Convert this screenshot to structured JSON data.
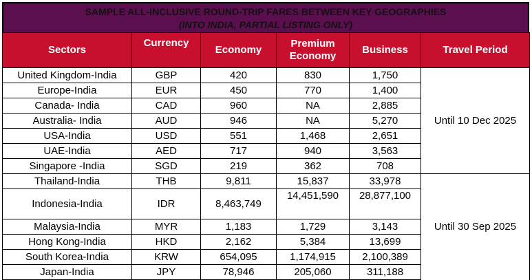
{
  "banner": {
    "title": "SAMPLE ALL-INCLUSIVE ROUND-TRIP FARES BETWEEN KEY GEOGRAPHIES",
    "subtitle": "(INTO INDIA, PARTIAL LISTING ONLY)"
  },
  "colors": {
    "banner": "#5b0f4f",
    "header": "#c8102e"
  },
  "headers": {
    "sectors": "Sectors",
    "currency": "Currency",
    "economy": "Economy",
    "premium_line1": "Premium",
    "premium_line2": "Economy",
    "business": "Business",
    "period": "Travel Period"
  },
  "periods": [
    "Until 10 Dec 2025",
    "Until 30 Sep 2025"
  ],
  "rows": [
    {
      "sector": "United Kingdom-India",
      "currency": "GBP",
      "economy": "420",
      "premium": "830",
      "business": "1,750"
    },
    {
      "sector": "Europe-India",
      "currency": "EUR",
      "economy": "450",
      "premium": "770",
      "business": "1,400"
    },
    {
      "sector": "Canada- India",
      "currency": "CAD",
      "economy": "960",
      "premium": "NA",
      "business": "2,885"
    },
    {
      "sector": "Australia- India",
      "currency": "AUD",
      "economy": "946",
      "premium": "NA",
      "business": "5,270"
    },
    {
      "sector": "USA-India",
      "currency": "USD",
      "economy": "551",
      "premium": "1,468",
      "business": "2,651"
    },
    {
      "sector": "UAE-India",
      "currency": "AED",
      "economy": "717",
      "premium": "940",
      "business": "3,563"
    },
    {
      "sector": "Singapore -India",
      "currency": "SGD",
      "economy": "219",
      "premium": "362",
      "business": "708"
    },
    {
      "sector": "Thailand-India",
      "currency": "THB",
      "economy": "9,811",
      "premium": "15,837",
      "business": "33,978"
    },
    {
      "sector": "Indonesia-India",
      "currency": "IDR",
      "economy": "8,463,749",
      "premium": "14,451,590",
      "business": "28,877,100"
    },
    {
      "sector": "Malaysia-India",
      "currency": "MYR",
      "economy": "1,183",
      "premium": "1,729",
      "business": "3,143"
    },
    {
      "sector": "Hong Kong-India",
      "currency": "HKD",
      "economy": "2,162",
      "premium": "5,384",
      "business": "13,699"
    },
    {
      "sector": "South Korea-India",
      "currency": "KRW",
      "economy": "654,095",
      "premium": "1,174,915",
      "business": "2,100,389"
    },
    {
      "sector": "Japan-India",
      "currency": "JPY",
      "economy": "78,946",
      "premium": "205,060",
      "business": "311,188"
    }
  ]
}
